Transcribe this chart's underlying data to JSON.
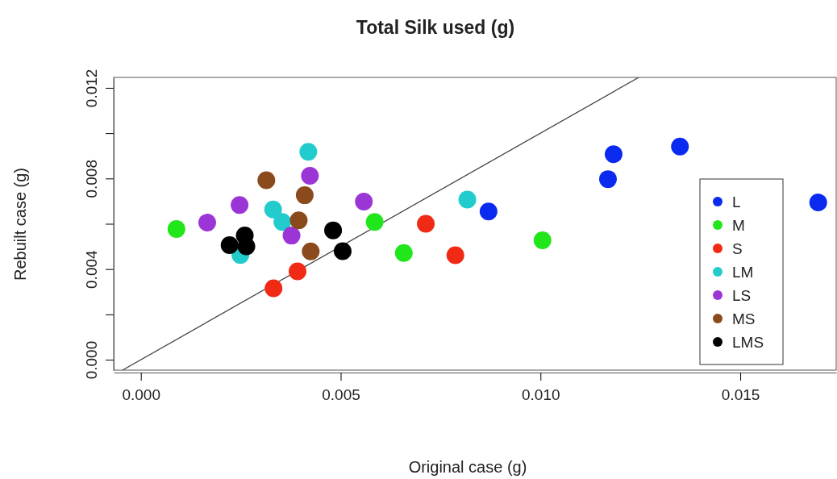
{
  "chart_data": {
    "type": "scatter",
    "title": "Total Silk used (g)",
    "xlabel": "Original case (g)",
    "ylabel": "Rebuilt case (g)",
    "xlim": [
      -0.00068,
      0.0174
    ],
    "ylim": [
      -0.00046,
      0.01246
    ],
    "xticks": [
      {
        "value": 0,
        "label": "0.000"
      },
      {
        "value": 0.005,
        "label": "0.005"
      },
      {
        "value": 0.01,
        "label": "0.010"
      },
      {
        "value": 0.015,
        "label": "0.015"
      }
    ],
    "yticks": [
      {
        "value": 0,
        "label": "0.000"
      },
      {
        "value": 0.002,
        "label": null
      },
      {
        "value": 0.004,
        "label": "0.004"
      },
      {
        "value": 0.006,
        "label": null
      },
      {
        "value": 0.008,
        "label": "0.008"
      },
      {
        "value": 0.01,
        "label": null
      },
      {
        "value": 0.012,
        "label": "0.012"
      }
    ],
    "grid": false,
    "legend": "right",
    "marker": "circle",
    "series": [
      {
        "name": "L",
        "color": "#0a2af0",
        "x": [
          0.0087,
          0.01169,
          0.01183,
          0.01349,
          0.01695
        ],
        "values": [
          0.00654,
          0.00797,
          0.00907,
          0.00941,
          0.00694
        ]
      },
      {
        "name": "M",
        "color": "#22e61c",
        "x": [
          0.00089,
          0.00585,
          0.00658,
          0.01005
        ],
        "values": [
          0.00577,
          0.00608,
          0.00471,
          0.00527
        ]
      },
      {
        "name": "S",
        "color": "#f02a14",
        "x": [
          0.00332,
          0.00392,
          0.00713,
          0.00787
        ],
        "values": [
          0.00315,
          0.0039,
          0.006,
          0.00461
        ]
      },
      {
        "name": "LM",
        "color": "#22cccc",
        "x": [
          0.00249,
          0.00331,
          0.00354,
          0.00419,
          0.00817
        ],
        "values": [
          0.00462,
          0.00663,
          0.00608,
          0.00918,
          0.00707
        ]
      },
      {
        "name": "LS",
        "color": "#9b35d6",
        "x": [
          0.00166,
          0.00247,
          0.00377,
          0.00423,
          0.00558
        ],
        "values": [
          0.00605,
          0.00683,
          0.00548,
          0.00812,
          0.00698
        ]
      },
      {
        "name": "MS",
        "color": "#8b4a1c",
        "x": [
          0.00314,
          0.00395,
          0.0041,
          0.00425
        ],
        "values": [
          0.00792,
          0.00615,
          0.00726,
          0.00478
        ]
      },
      {
        "name": "LMS",
        "color": "#000000",
        "x": [
          0.00222,
          0.0026,
          0.00264,
          0.00481,
          0.00505
        ],
        "values": [
          0.00506,
          0.00548,
          0.005,
          0.00571,
          0.00479
        ]
      },
      {
        "type": "line",
        "color": "#444444",
        "marker": "none",
        "line_style": "solid",
        "x": [
          -0.00046,
          0.01246
        ],
        "values": [
          -0.00046,
          0.01246
        ]
      }
    ]
  }
}
